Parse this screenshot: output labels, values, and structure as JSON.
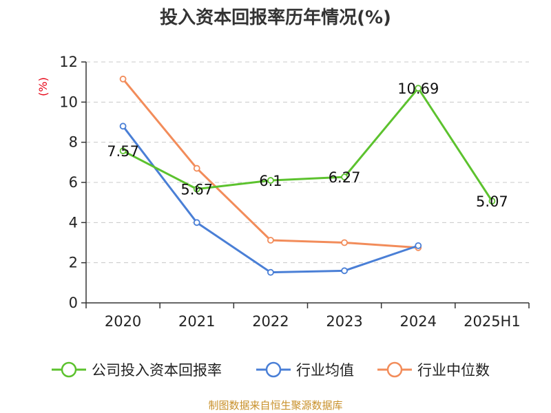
{
  "chart_data": {
    "type": "line",
    "title": "投入资本回报率历年情况(%)",
    "ylabel": "(%)",
    "xlabel": "",
    "categories": [
      "2020",
      "2021",
      "2022",
      "2023",
      "2024",
      "2025H1"
    ],
    "ylim": [
      0,
      12
    ],
    "yticks": [
      "0",
      "2",
      "4",
      "6",
      "8",
      "10",
      "12"
    ],
    "grid": true,
    "legend_position": "bottom",
    "series": [
      {
        "name": "公司投入资本回报率",
        "color": "#5cc22e",
        "values": [
          7.57,
          5.67,
          6.1,
          6.27,
          10.69,
          5.07
        ],
        "labels": [
          "7.57",
          "5.67",
          "6.1",
          "6.27",
          "10.69",
          "5.07"
        ]
      },
      {
        "name": "行业均值",
        "color": "#4a7fd6",
        "values": [
          8.8,
          4.0,
          1.52,
          1.6,
          2.85,
          null
        ]
      },
      {
        "name": "行业中位数",
        "color": "#f28c5a",
        "values": [
          11.15,
          6.7,
          3.12,
          3.0,
          2.75,
          null
        ]
      }
    ]
  },
  "source": "制图数据来自恒生聚源数据库"
}
